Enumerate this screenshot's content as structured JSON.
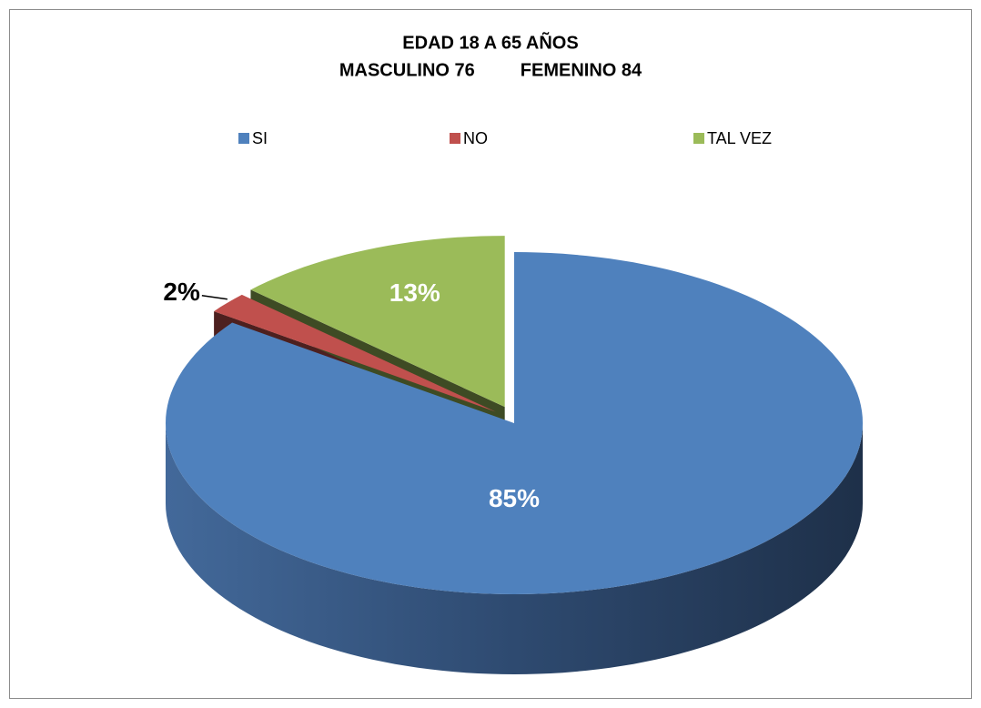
{
  "chart_data": {
    "type": "pie",
    "title": "EDAD 18 A 65 AÑOS",
    "subtitle": "MASCULINO 76         FEMENINO 84",
    "categories": [
      "SI",
      "NO",
      "TAL VEZ"
    ],
    "values": [
      85,
      2,
      13
    ],
    "value_labels": [
      "85%",
      "2%",
      "13%"
    ],
    "colors": [
      "#4f81bd",
      "#c0504d",
      "#9bbb59"
    ],
    "legend": "top"
  }
}
